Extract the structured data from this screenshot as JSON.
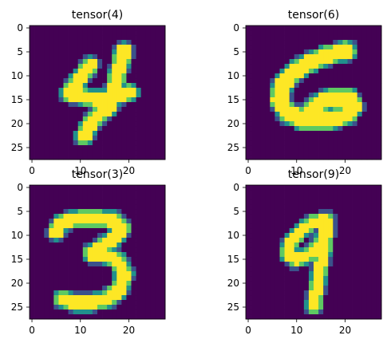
{
  "chart_data": [
    {
      "type": "heatmap",
      "title": "tensor(4)",
      "rows": 28,
      "cols": 28,
      "colormap": "viridis",
      "xticks": [
        "0",
        "10",
        "20"
      ],
      "yticks": [
        "0",
        "5",
        "10",
        "15",
        "20",
        "25"
      ],
      "strokes": [
        {
          "points": [
            [
              19.5,
              5.2
            ],
            [
              18.6,
              8.5
            ],
            [
              17.9,
              11.5
            ],
            [
              17.2,
              14.5
            ],
            [
              16.4,
              17.0
            ]
          ],
          "width": 2.3
        },
        {
          "points": [
            [
              12.6,
              8.2
            ],
            [
              10.4,
              11.0
            ],
            [
              8.2,
              14.2
            ]
          ],
          "width": 2.2
        },
        {
          "points": [
            [
              8.2,
              14.2
            ],
            [
              11.5,
              15.0
            ],
            [
              14.5,
              15.4
            ],
            [
              17.8,
              14.8
            ],
            [
              20.8,
              14.0
            ]
          ],
          "width": 2.2
        },
        {
          "points": [
            [
              16.4,
              17.0
            ],
            [
              14.2,
              18.8
            ],
            [
              12.5,
              20.8
            ],
            [
              11.2,
              23.2
            ]
          ],
          "width": 2.3
        }
      ]
    },
    {
      "type": "heatmap",
      "title": "tensor(6)",
      "rows": 28,
      "cols": 28,
      "colormap": "viridis",
      "xticks": [
        "0",
        "10",
        "20"
      ],
      "yticks": [
        "0",
        "5",
        "10",
        "15",
        "20",
        "25"
      ],
      "strokes": [
        {
          "points": [
            [
              20.8,
              5.3
            ],
            [
              17.0,
              6.2
            ],
            [
              13.2,
              7.7
            ],
            [
              9.8,
              9.8
            ],
            [
              7.5,
              12.6
            ],
            [
              7.0,
              15.6
            ],
            [
              8.6,
              18.3
            ],
            [
              12.0,
              19.8
            ],
            [
              16.5,
              19.9
            ],
            [
              20.8,
              18.8
            ],
            [
              22.3,
              16.8
            ],
            [
              21.2,
              15.2
            ],
            [
              18.2,
              15.0
            ],
            [
              15.2,
              16.2
            ],
            [
              13.2,
              17.9
            ]
          ],
          "width": 2.7
        }
      ]
    },
    {
      "type": "heatmap",
      "title": "tensor(3)",
      "rows": 28,
      "cols": 28,
      "colormap": "viridis",
      "xticks": [
        "0",
        "10",
        "20"
      ],
      "yticks": [
        "0",
        "5",
        "10",
        "15",
        "20",
        "25"
      ],
      "strokes": [
        {
          "points": [
            [
              5.5,
              9.8
            ],
            [
              6.5,
              7.8
            ],
            [
              10.0,
              7.1
            ],
            [
              14.0,
              6.9
            ],
            [
              17.6,
              7.4
            ],
            [
              19.1,
              8.9
            ],
            [
              17.8,
              10.9
            ],
            [
              15.0,
              12.8
            ],
            [
              12.8,
              14.3
            ]
          ],
          "width": 2.2
        },
        {
          "points": [
            [
              12.8,
              14.3
            ],
            [
              15.6,
              14.6
            ],
            [
              18.2,
              15.8
            ],
            [
              19.6,
              18.6
            ],
            [
              18.7,
              21.8
            ],
            [
              16.0,
              23.9
            ],
            [
              12.5,
              24.6
            ],
            [
              8.8,
              24.6
            ],
            [
              6.8,
              23.8
            ]
          ],
          "width": 2.2
        }
      ]
    },
    {
      "type": "heatmap",
      "title": "tensor(9)",
      "rows": 28,
      "cols": 28,
      "colormap": "viridis",
      "xticks": [
        "0",
        "10",
        "20"
      ],
      "yticks": [
        "0",
        "5",
        "10",
        "15",
        "20",
        "25"
      ],
      "strokes": [
        {
          "points": [
            [
              16.7,
              7.3
            ],
            [
              14.0,
              7.7
            ],
            [
              11.3,
              9.7
            ],
            [
              9.3,
              12.0
            ],
            [
              8.6,
              14.4
            ],
            [
              10.2,
              15.7
            ],
            [
              13.0,
              14.6
            ],
            [
              15.5,
              12.0
            ],
            [
              16.8,
              9.0
            ],
            [
              16.7,
              7.3
            ]
          ],
          "width": 1.7
        },
        {
          "points": [
            [
              16.6,
              9.5
            ],
            [
              16.2,
              13.0
            ],
            [
              15.5,
              16.5
            ],
            [
              14.9,
              20.0
            ],
            [
              14.4,
              23.0
            ],
            [
              14.1,
              25.2
            ]
          ],
          "width": 1.9
        }
      ]
    }
  ]
}
